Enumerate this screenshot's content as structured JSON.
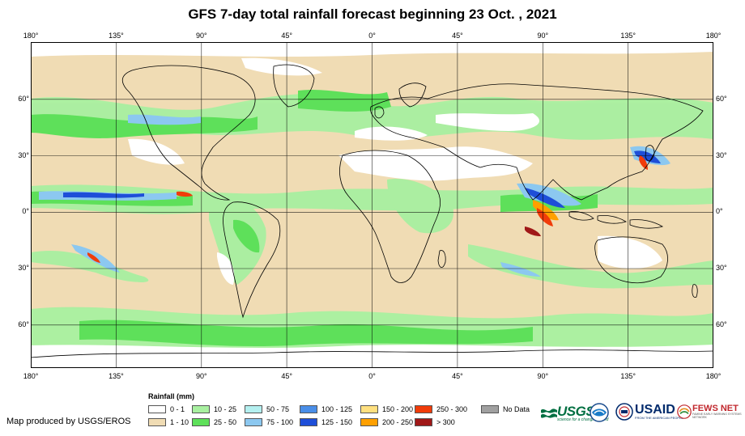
{
  "title": "GFS 7-day total rainfall forecast beginning 23 Oct. , 2021",
  "axes": {
    "lon_ticks": [
      "180°",
      "135°",
      "90°",
      "45°",
      "0°",
      "45°",
      "90°",
      "135°",
      "180°"
    ],
    "lat_ticks": [
      "60°",
      "30°",
      "0°",
      "30°",
      "60°"
    ]
  },
  "legend": {
    "title": "Rainfall (mm)",
    "items": [
      {
        "label": "0 - 1",
        "color": "#ffffff"
      },
      {
        "label": "1 - 10",
        "color": "#f0dcb4"
      },
      {
        "label": "10 - 25",
        "color": "#a8f0a0"
      },
      {
        "label": "25 - 50",
        "color": "#5ee05a"
      },
      {
        "label": "50 - 75",
        "color": "#b4f0f0"
      },
      {
        "label": "75 - 100",
        "color": "#8cc8f0"
      },
      {
        "label": "100 - 125",
        "color": "#4a8ee8"
      },
      {
        "label": "125 - 150",
        "color": "#1e4ed8"
      },
      {
        "label": "150 - 200",
        "color": "#ffe080"
      },
      {
        "label": "200 - 250",
        "color": "#ffa000"
      },
      {
        "label": "250 - 300",
        "color": "#f03c0a"
      },
      {
        "label": "> 300",
        "color": "#a01818"
      },
      {
        "label": "No Data",
        "color": "#a0a0a0"
      }
    ]
  },
  "credit": "Map produced by USGS/EROS",
  "logos": {
    "usgs": {
      "name": "USGS",
      "tagline": "science for a changing world",
      "icon": "usgs-wave-icon"
    },
    "noaa": {
      "icon": "noaa-seal-icon"
    },
    "usaid": {
      "name": "USAID",
      "tagline": "FROM THE AMERICAN PEOPLE",
      "icon": "usaid-seal-icon"
    },
    "fews": {
      "name": "FEWS NET",
      "tagline": "FAMINE EARLY WARNING SYSTEMS NETWORK",
      "icon": "fews-globe-icon"
    }
  }
}
